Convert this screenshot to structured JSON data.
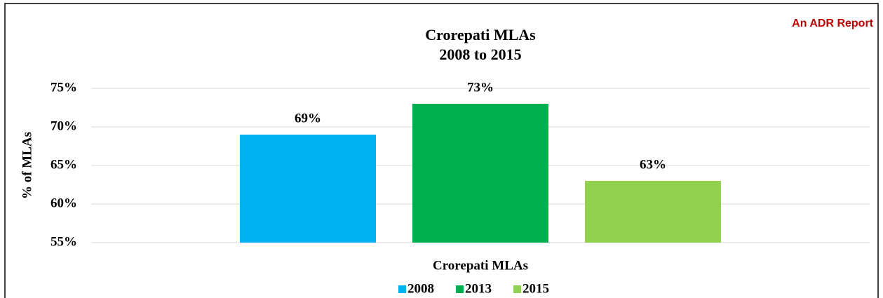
{
  "chart_data": {
    "type": "bar",
    "title": [
      "Crorepati MLAs",
      "2008 to 2015"
    ],
    "annotation": "An ADR Report",
    "y_label": "% of MLAs",
    "categories": [
      "Crorepati MLAs"
    ],
    "series": [
      {
        "name": "2008",
        "color": "#00b0f0",
        "values": [
          69
        ],
        "value_labels": [
          "69%"
        ]
      },
      {
        "name": "2013",
        "color": "#00b050",
        "values": [
          73
        ],
        "value_labels": [
          "73%"
        ]
      },
      {
        "name": "2015",
        "color": "#92d050",
        "values": [
          63
        ],
        "value_labels": [
          "63%"
        ]
      }
    ],
    "ylim": [
      55,
      75
    ],
    "yticks": [
      {
        "value": 55,
        "label": "55%"
      },
      {
        "value": 60,
        "label": "60%"
      },
      {
        "value": 65,
        "label": "65%"
      },
      {
        "value": 70,
        "label": "70%"
      },
      {
        "value": 75,
        "label": "75%"
      }
    ],
    "grid": true,
    "legend": "bottom"
  }
}
